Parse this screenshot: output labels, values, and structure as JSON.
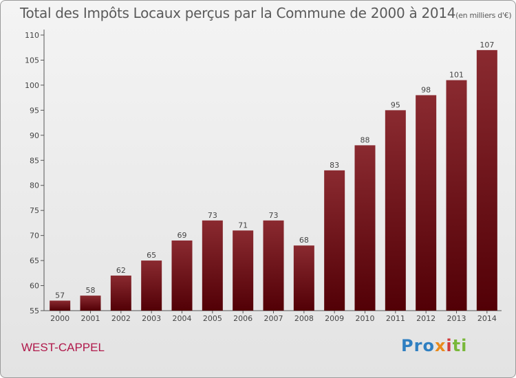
{
  "chart_data": {
    "type": "bar",
    "title": "Total des Impôts Locaux perçus par la Commune de 2000 à 2014",
    "unit_label": "(en milliers d'€)",
    "categories": [
      "2000",
      "2001",
      "2002",
      "2003",
      "2004",
      "2005",
      "2006",
      "2007",
      "2008",
      "2009",
      "2010",
      "2011",
      "2012",
      "2013",
      "2014"
    ],
    "values": [
      57,
      58,
      62,
      65,
      69,
      73,
      71,
      73,
      68,
      83,
      88,
      95,
      98,
      101,
      107
    ],
    "ylim": [
      55,
      110
    ],
    "yticks": [
      55,
      60,
      65,
      70,
      75,
      80,
      85,
      90,
      95,
      100,
      105,
      110
    ],
    "xlabel": "",
    "ylabel": "",
    "grid": false,
    "bar_color": "#6b0f14"
  },
  "commune_name": "WEST-CAPPEL",
  "logo": {
    "text": "Proxiti"
  }
}
